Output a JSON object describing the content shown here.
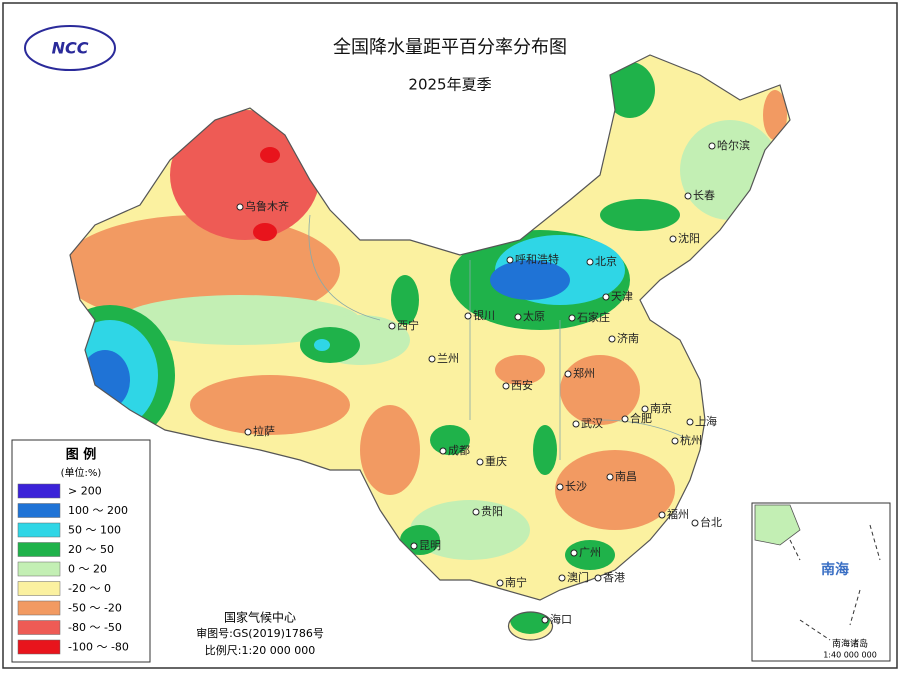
{
  "header": {
    "logo": "NCC",
    "title": "全国降水量距平百分率分布图",
    "subtitle": "2025年夏季"
  },
  "legend": {
    "title": "图 例",
    "unit": "(单位:%)",
    "items": [
      {
        "label": "> 200",
        "color": "#3b22d8"
      },
      {
        "label": "100 ～ 200",
        "color": "#1f73d6"
      },
      {
        "label": "50 ～ 100",
        "color": "#2fd6e6"
      },
      {
        "label": "20 ～ 50",
        "color": "#1fb24a"
      },
      {
        "label": "0 ～ 20",
        "color": "#c3efb4"
      },
      {
        "label": "-20 ～ 0",
        "color": "#fbf1a0"
      },
      {
        "label": "-50 ～ -20",
        "color": "#f29a62"
      },
      {
        "label": "-80 ～ -50",
        "color": "#ee5b55"
      },
      {
        "label": "-100 ～ -80",
        "color": "#e8141c"
      }
    ]
  },
  "cities": [
    "乌鲁木齐",
    "哈尔滨",
    "长春",
    "沈阳",
    "呼和浩特",
    "北京",
    "天津",
    "石家庄",
    "太原",
    "银川",
    "西宁",
    "济南",
    "兰州",
    "郑州",
    "西安",
    "南京",
    "合肥",
    "上海",
    "武汉",
    "杭州",
    "拉萨",
    "成都",
    "重庆",
    "长沙",
    "南昌",
    "福州",
    "台北",
    "贵阳",
    "昆明",
    "广州",
    "南宁",
    "澳门",
    "香港",
    "海口"
  ],
  "footer": {
    "agency": "国家气候中心",
    "approval": "审图号:GS(2019)1786号",
    "scale": "比例尺:1:20 000 000"
  },
  "inset": {
    "sea": "南海",
    "caption": "南海诸岛",
    "scale": "1:40 000 000"
  }
}
